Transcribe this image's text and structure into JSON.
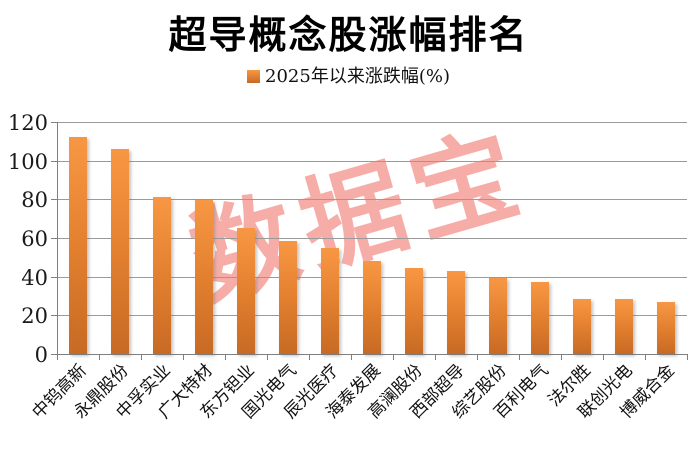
{
  "chart_data": {
    "type": "bar",
    "title": "超导概念股涨幅排名",
    "series_name": "2025年以来涨跌幅(%)",
    "legend_position": "top",
    "categories": [
      "中钨高新",
      "永鼎股份",
      "中孚实业",
      "广大特材",
      "东方钽业",
      "国光电气",
      "辰光医疗",
      "海泰发展",
      "高澜股份",
      "西部超导",
      "综艺股份",
      "百利电气",
      "法尔胜",
      "联创光电",
      "博威合金"
    ],
    "values": [
      112,
      106,
      81,
      79.5,
      65,
      58.5,
      55,
      48,
      44.5,
      43,
      39.5,
      37,
      28.4,
      28.2,
      26.8
    ],
    "ylim": [
      0,
      120
    ],
    "yticks": [
      0,
      20,
      40,
      60,
      80,
      100,
      120
    ],
    "grid": true,
    "watermark": "数据宝",
    "colors": {
      "bar_top": "#F89743",
      "bar_bottom": "#C76A24",
      "watermark": "#F6A29B",
      "grid": "#9a9a9a",
      "axis": "#7f7f7f",
      "text": "#111111"
    }
  }
}
